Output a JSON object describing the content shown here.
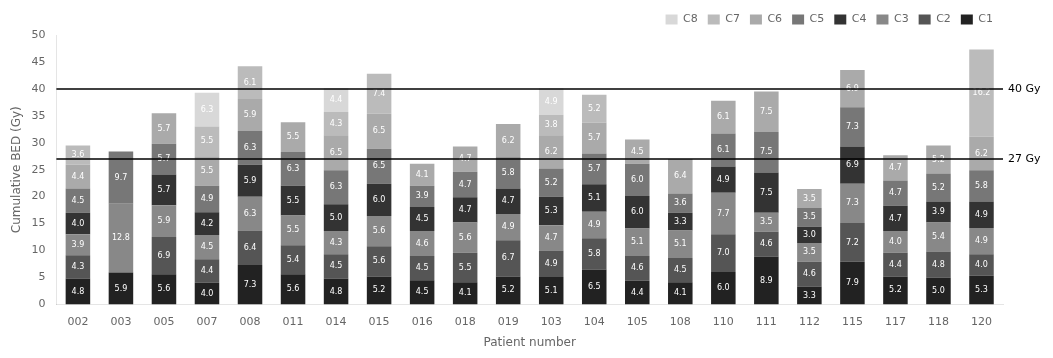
{
  "chart_data": {
    "type": "bar",
    "stacked": true,
    "xlabel": "Patient number",
    "ylabel": "Cumulative BED (Gy)",
    "categories": [
      "002",
      "003",
      "005",
      "007",
      "008",
      "011",
      "014",
      "015",
      "016",
      "018",
      "019",
      "103",
      "104",
      "105",
      "108",
      "110",
      "111",
      "112",
      "115",
      "117",
      "118",
      "120"
    ],
    "series": [
      {
        "name": "C1",
        "color": "#222222",
        "values": [
          4.8,
          5.9,
          5.6,
          4.0,
          7.3,
          5.6,
          4.8,
          5.2,
          4.5,
          4.1,
          5.2,
          5.1,
          6.5,
          4.4,
          4.1,
          6.0,
          8.9,
          3.3,
          7.9,
          5.2,
          5.0,
          5.3
        ],
        "value_labels": [
          "4.8",
          "5.9",
          "5.6",
          "4.0",
          "7.3",
          "5.6",
          "4.8",
          "5.2",
          "4.5",
          "4.1",
          "5.2",
          "5.1",
          "6.5",
          "4.4",
          "4.1",
          "6.0",
          "8.9",
          "3.3",
          "7.9",
          "5.2",
          "5.0",
          "5.3"
        ]
      },
      {
        "name": "C2",
        "color": "#555555",
        "values": [
          4.3,
          0.0,
          6.9,
          4.4,
          6.4,
          5.4,
          4.5,
          5.6,
          4.5,
          5.5,
          6.7,
          4.9,
          5.8,
          4.6,
          4.5,
          7.0,
          4.6,
          4.6,
          7.2,
          4.4,
          4.8,
          4.0
        ],
        "value_labels": [
          "4.3",
          null,
          "6.9",
          "4.4",
          "6.4",
          "5.4",
          "4.5",
          "5.6",
          "4.5",
          "5.5",
          "6.7",
          "4.9",
          "5.8",
          "4.6",
          "4.5",
          "7.0",
          "4.6",
          "4.6",
          "7.2",
          "4.4",
          "4.8",
          "4.0"
        ]
      },
      {
        "name": "C3",
        "color": "#888888",
        "values": [
          3.9,
          12.8,
          5.9,
          4.5,
          6.3,
          5.5,
          4.3,
          5.6,
          4.6,
          5.6,
          4.9,
          4.7,
          4.9,
          5.1,
          5.1,
          7.7,
          3.5,
          3.5,
          7.3,
          4.0,
          5.4,
          4.9
        ],
        "value_labels": [
          "3.9",
          "12.8",
          "5.9",
          "4.5",
          "6.3",
          "5.5",
          "4.3",
          "5.6",
          "4.6",
          "5.6",
          "4.9",
          "4.7",
          "4.9",
          "5.1",
          "5.1",
          "7.7",
          "3.5",
          "3.5",
          "7.3",
          "4.0",
          "5.4",
          "4.9"
        ]
      },
      {
        "name": "C4",
        "color": "#333333",
        "values": [
          4.0,
          0.0,
          5.7,
          4.2,
          5.9,
          5.5,
          5.0,
          6.0,
          4.5,
          4.7,
          4.7,
          5.3,
          5.1,
          6.0,
          3.3,
          4.9,
          7.5,
          3.0,
          6.9,
          4.7,
          3.9,
          4.9
        ],
        "value_labels": [
          "4.0",
          null,
          "5.7",
          "4.2",
          "5.9",
          "5.5",
          "5.0",
          "6.0",
          "4.5",
          "4.7",
          "4.7",
          "5.3",
          "5.1",
          "6.0",
          "3.3",
          "4.9",
          "7.5",
          "3.0",
          "6.9",
          "4.7",
          "3.9",
          "4.9"
        ]
      },
      {
        "name": "C5",
        "color": "#777777",
        "values": [
          4.5,
          9.7,
          5.7,
          4.9,
          6.3,
          6.3,
          6.3,
          6.5,
          3.9,
          4.7,
          5.8,
          5.2,
          5.7,
          6.0,
          3.6,
          6.1,
          7.5,
          3.5,
          7.3,
          4.7,
          5.2,
          5.8
        ],
        "value_labels": [
          "4.5",
          "9.7",
          "5.7",
          "4.9",
          "6.3",
          "6.3",
          "6.3",
          "6.5",
          "3.9",
          "4.7",
          "5.8",
          "5.2",
          "5.7",
          "6.0",
          "3.6",
          "6.1",
          "7.5",
          "3.5",
          "7.3",
          "4.7",
          "5.2",
          "5.8"
        ]
      },
      {
        "name": "C6",
        "color": "#aaaaaa",
        "values": [
          4.4,
          0.0,
          5.7,
          5.5,
          5.9,
          5.5,
          6.5,
          6.5,
          4.1,
          4.7,
          6.2,
          6.2,
          5.7,
          4.5,
          6.4,
          6.1,
          7.5,
          3.5,
          6.9,
          4.7,
          5.2,
          6.2
        ],
        "value_labels": [
          "4.4",
          null,
          "5.7",
          "5.5",
          "5.9",
          "5.5",
          "6.5",
          "6.5",
          "4.1",
          "4.7",
          "6.2",
          "6.2",
          "5.7",
          "4.5",
          "6.4",
          "6.1",
          "7.5",
          "3.5",
          "6.9",
          "4.7",
          "5.2",
          "6.2"
        ]
      },
      {
        "name": "C7",
        "color": "#bbbbbb",
        "values": [
          3.6,
          0.0,
          0.0,
          5.5,
          6.1,
          0.0,
          4.3,
          7.4,
          0.0,
          0.0,
          0.0,
          3.8,
          5.2,
          0.0,
          0.0,
          0.0,
          0.0,
          0.0,
          0.0,
          0.0,
          0.0,
          16.2
        ],
        "value_labels": [
          "3.6",
          null,
          null,
          "5.5",
          "6.1",
          null,
          "4.3",
          "7.4",
          null,
          null,
          null,
          "3.8",
          "5.2",
          null,
          null,
          null,
          null,
          null,
          null,
          null,
          null,
          "16.2"
        ]
      },
      {
        "name": "C8",
        "color": "#d8d8d8",
        "values": [
          0.0,
          0.0,
          0.0,
          6.3,
          0.0,
          0.0,
          4.4,
          0.0,
          0.0,
          0.0,
          0.0,
          4.9,
          0.0,
          0.0,
          0.0,
          0.0,
          0.0,
          0.0,
          0.0,
          0.0,
          0.0,
          0.0
        ],
        "value_labels": [
          null,
          null,
          null,
          "6.3",
          null,
          null,
          "4.4",
          null,
          null,
          null,
          null,
          "4.9",
          null,
          null,
          null,
          null,
          null,
          null,
          null,
          null,
          null,
          null
        ]
      }
    ],
    "annotations": [
      {
        "text": "40 Gy",
        "y": 40,
        "color": "#000000"
      },
      {
        "text": "27 Gy",
        "y": 27,
        "color": "#000000"
      }
    ],
    "ylim": [
      0,
      50
    ],
    "yticks": [
      0,
      5,
      10,
      15,
      20,
      25,
      30,
      35,
      40,
      45,
      50
    ],
    "data_labels": true,
    "legend": "top",
    "grid": false
  }
}
